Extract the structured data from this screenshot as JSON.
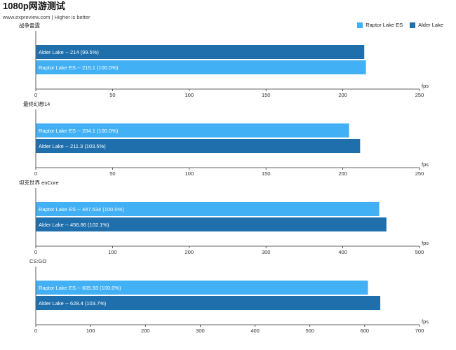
{
  "page": {
    "title": "1080p网游测试",
    "subtitle": "www.expreview.com | Higher is better"
  },
  "legend": [
    {
      "label": "Raptor Lake ES",
      "color": "#42b0f5"
    },
    {
      "label": "Alder Lake",
      "color": "#1f6fac"
    }
  ],
  "chart_data": [
    {
      "type": "bar",
      "title": "战争雷霆",
      "xlabel": "fps",
      "xlim": [
        0,
        250
      ],
      "ticks": [
        0,
        50,
        100,
        150,
        200,
        250
      ],
      "categories": [
        "Alder Lake",
        "Raptor Lake ES"
      ],
      "values": [
        214,
        215.1
      ],
      "labels": [
        "Alder Lake  --  214 (99.5%)",
        "Raptor Lake ES  --  215.1 (100.0%)"
      ],
      "colors": [
        "#1f6fac",
        "#42b0f5"
      ]
    },
    {
      "type": "bar",
      "title": "最终幻想14",
      "xlabel": "fps",
      "xlim": [
        0,
        250
      ],
      "ticks": [
        0,
        50,
        100,
        150,
        200,
        250
      ],
      "categories": [
        "Raptor Lake ES",
        "Alder Lake"
      ],
      "values": [
        204.1,
        211.3
      ],
      "labels": [
        "Raptor Lake ES  --  204.1 (100.0%)",
        "Alder Lake  --  211.3 (103.5%)"
      ],
      "colors": [
        "#42b0f5",
        "#1f6fac"
      ]
    },
    {
      "type": "bar",
      "title": "坦克世界 enCore",
      "xlabel": "fps",
      "xlim": [
        0,
        500
      ],
      "ticks": [
        0,
        100,
        200,
        300,
        400,
        500
      ],
      "categories": [
        "Raptor Lake ES",
        "Alder Lake"
      ],
      "values": [
        447.534,
        456.86
      ],
      "labels": [
        "Raptor Lake ES  --  447.534 (100.0%)",
        "Alder Lake  --  456.86 (102.1%)"
      ],
      "colors": [
        "#42b0f5",
        "#1f6fac"
      ]
    },
    {
      "type": "bar",
      "title": "CS:GO",
      "xlabel": "fps",
      "xlim": [
        0,
        700
      ],
      "ticks": [
        0,
        100,
        200,
        300,
        400,
        500,
        600,
        700
      ],
      "categories": [
        "Raptor Lake ES",
        "Alder Lake"
      ],
      "values": [
        605.93,
        628.4
      ],
      "labels": [
        "Raptor Lake ES  --  605.93 (100.0%)",
        "Alder Lake  --  628.4 (103.7%)"
      ],
      "colors": [
        "#42b0f5",
        "#1f6fac"
      ]
    }
  ]
}
